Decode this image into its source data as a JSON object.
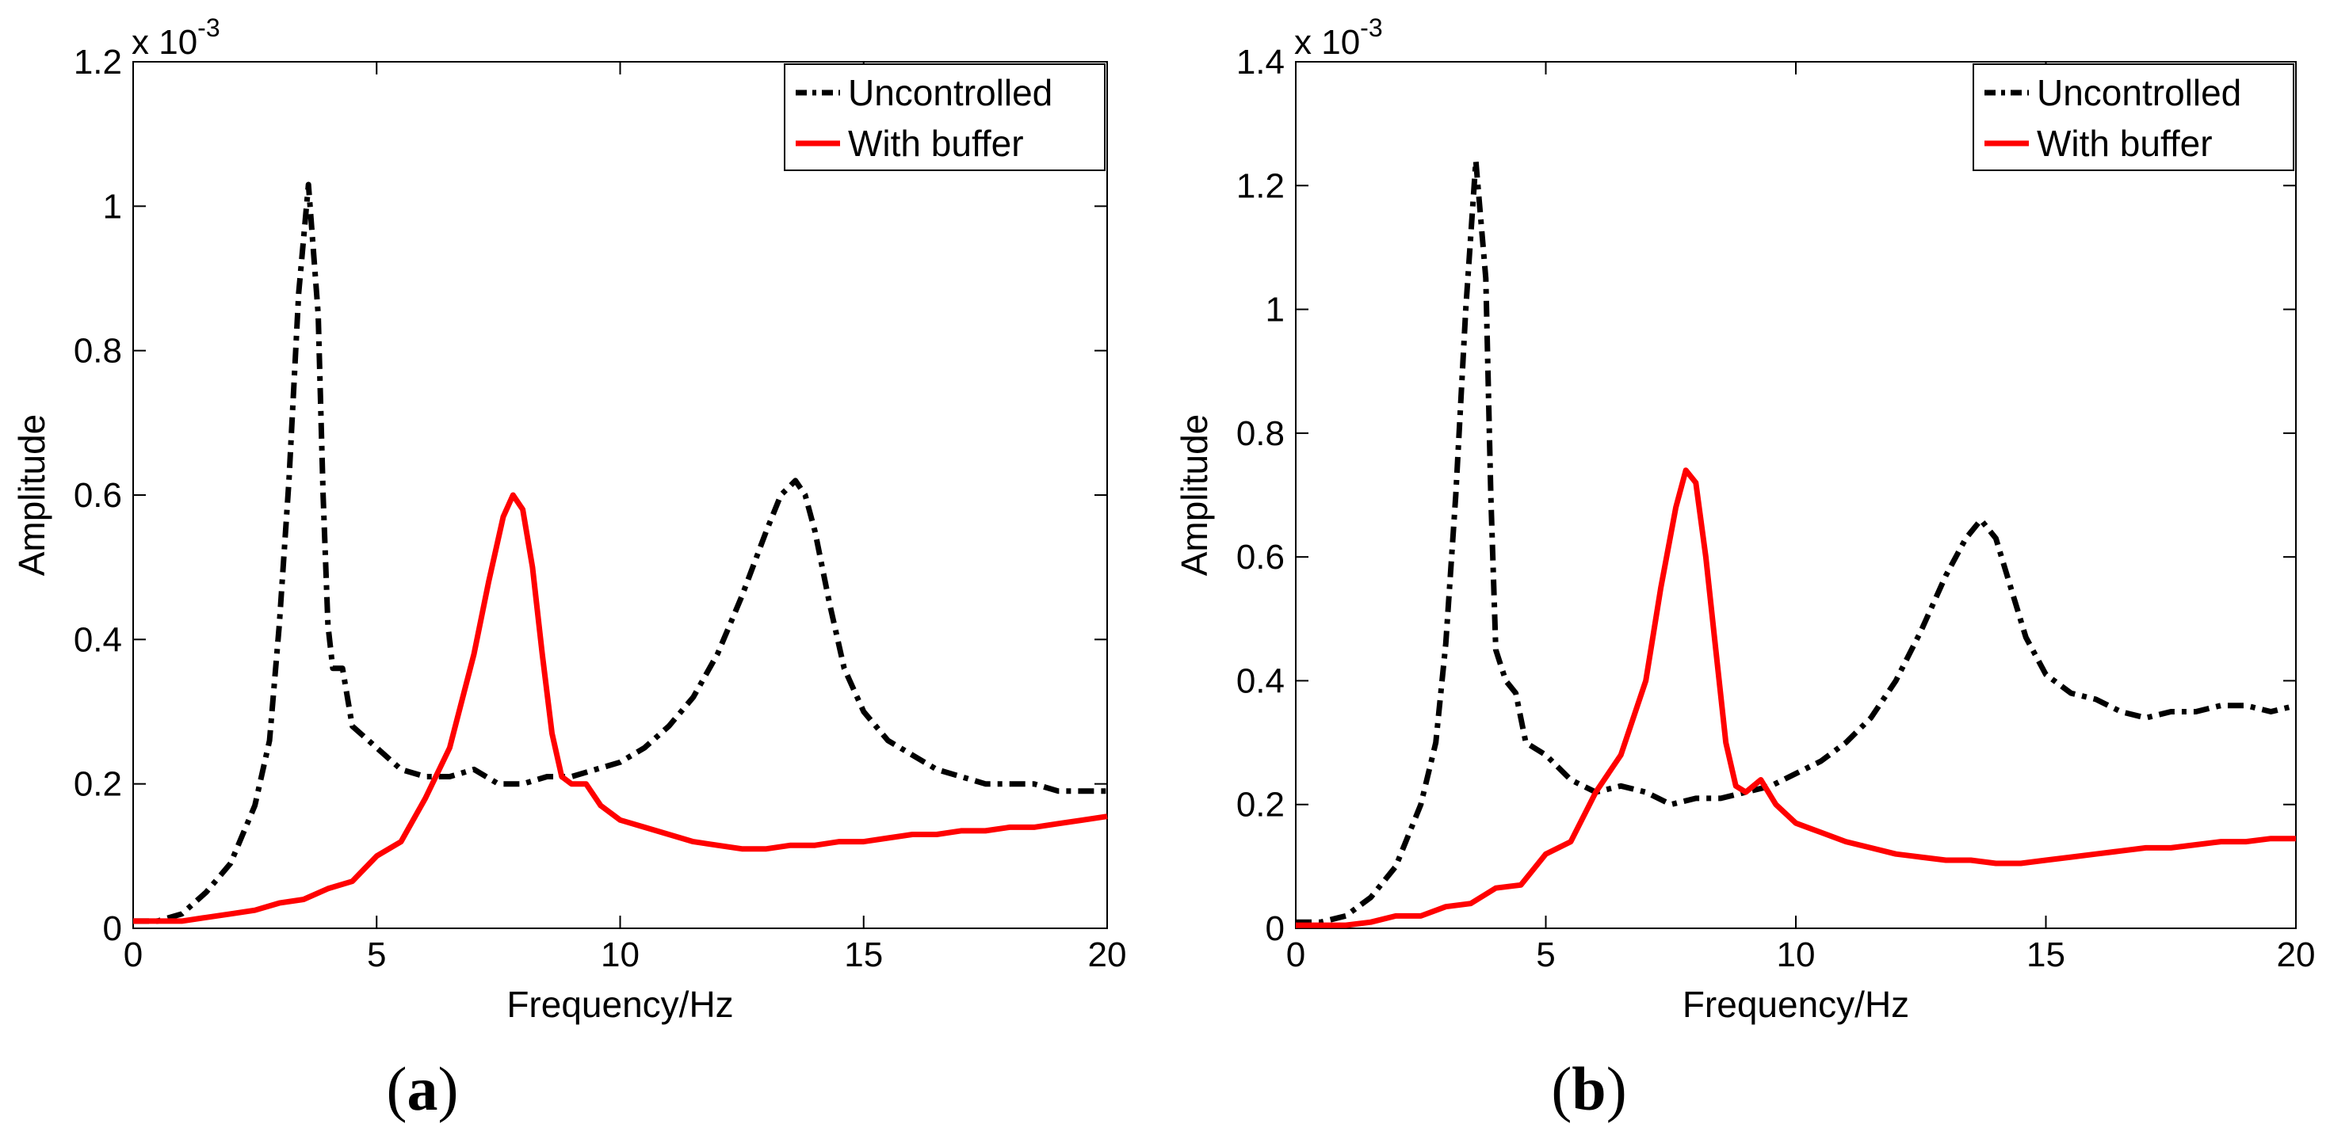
{
  "figure": {
    "panel_labels": [
      "a",
      "b"
    ]
  },
  "chart_data": [
    {
      "type": "line",
      "panel": "a",
      "xlabel": "Frequency/Hz",
      "ylabel": "Amplitude",
      "y_scale_label": "x 10",
      "y_scale_exponent": "-3",
      "xlim": [
        0,
        20
      ],
      "ylim": [
        0,
        1.2
      ],
      "xticks": [
        0,
        5,
        10,
        15,
        20
      ],
      "xtick_labels": [
        "0",
        "5",
        "10",
        "15",
        "20"
      ],
      "yticks": [
        0,
        0.2,
        0.4,
        0.6,
        0.8,
        1.0,
        1.2
      ],
      "ytick_labels": [
        "0",
        "0.2",
        "0.4",
        "0.6",
        "0.8",
        "1",
        "1.2"
      ],
      "legend_position": "top-right",
      "series": [
        {
          "name": "Uncontrolled",
          "color": "#000000",
          "style": "dashdot",
          "x": [
            0,
            0.5,
            1.0,
            1.5,
            2.0,
            2.5,
            2.8,
            3.0,
            3.2,
            3.4,
            3.6,
            3.8,
            3.9,
            4.0,
            4.1,
            4.3,
            4.5,
            5.0,
            5.5,
            6.0,
            6.5,
            7.0,
            7.5,
            8.0,
            8.5,
            9.0,
            9.5,
            10.0,
            10.5,
            11.0,
            11.5,
            12.0,
            12.5,
            13.0,
            13.3,
            13.6,
            13.8,
            14.0,
            14.3,
            14.6,
            15.0,
            15.5,
            16.0,
            16.5,
            17.0,
            17.5,
            18.0,
            18.5,
            19.0,
            19.5,
            20.0
          ],
          "values": [
            0.01,
            0.01,
            0.02,
            0.05,
            0.09,
            0.17,
            0.26,
            0.42,
            0.62,
            0.88,
            1.03,
            0.85,
            0.6,
            0.42,
            0.36,
            0.36,
            0.28,
            0.25,
            0.22,
            0.21,
            0.21,
            0.22,
            0.2,
            0.2,
            0.21,
            0.21,
            0.22,
            0.23,
            0.25,
            0.28,
            0.32,
            0.38,
            0.46,
            0.55,
            0.6,
            0.62,
            0.6,
            0.55,
            0.45,
            0.36,
            0.3,
            0.26,
            0.24,
            0.22,
            0.21,
            0.2,
            0.2,
            0.2,
            0.19,
            0.19,
            0.19
          ]
        },
        {
          "name": "With buffer",
          "color": "#ff0000",
          "style": "solid",
          "x": [
            0,
            0.5,
            1.0,
            1.5,
            2.0,
            2.5,
            3.0,
            3.5,
            4.0,
            4.5,
            5.0,
            5.5,
            6.0,
            6.5,
            7.0,
            7.3,
            7.6,
            7.8,
            8.0,
            8.2,
            8.4,
            8.6,
            8.8,
            9.0,
            9.3,
            9.6,
            10.0,
            10.5,
            11.0,
            11.5,
            12.0,
            12.5,
            13.0,
            13.5,
            14.0,
            14.5,
            15.0,
            15.5,
            16.0,
            16.5,
            17.0,
            17.5,
            18.0,
            18.5,
            19.0,
            19.5,
            20.0
          ],
          "values": [
            0.01,
            0.01,
            0.01,
            0.015,
            0.02,
            0.025,
            0.035,
            0.04,
            0.055,
            0.065,
            0.1,
            0.12,
            0.18,
            0.25,
            0.38,
            0.48,
            0.57,
            0.6,
            0.58,
            0.5,
            0.38,
            0.27,
            0.21,
            0.2,
            0.2,
            0.17,
            0.15,
            0.14,
            0.13,
            0.12,
            0.115,
            0.11,
            0.11,
            0.115,
            0.115,
            0.12,
            0.12,
            0.125,
            0.13,
            0.13,
            0.135,
            0.135,
            0.14,
            0.14,
            0.145,
            0.15,
            0.155
          ]
        }
      ]
    },
    {
      "type": "line",
      "panel": "b",
      "xlabel": "Frequency/Hz",
      "ylabel": "Amplitude",
      "y_scale_label": "x 10",
      "y_scale_exponent": "-3",
      "xlim": [
        0,
        20
      ],
      "ylim": [
        0,
        1.4
      ],
      "xticks": [
        0,
        5,
        10,
        15,
        20
      ],
      "xtick_labels": [
        "0",
        "5",
        "10",
        "15",
        "20"
      ],
      "yticks": [
        0,
        0.2,
        0.4,
        0.6,
        0.8,
        1.0,
        1.2,
        1.4
      ],
      "ytick_labels": [
        "0",
        "0.2",
        "0.4",
        "0.6",
        "0.8",
        "1",
        "1.2",
        "1.4"
      ],
      "legend_position": "top-right",
      "series": [
        {
          "name": "Uncontrolled",
          "color": "#000000",
          "style": "dashdot",
          "x": [
            0,
            0.5,
            1.0,
            1.5,
            2.0,
            2.5,
            2.8,
            3.0,
            3.2,
            3.4,
            3.6,
            3.8,
            3.9,
            4.0,
            4.2,
            4.4,
            4.6,
            5.0,
            5.5,
            6.0,
            6.5,
            7.0,
            7.5,
            8.0,
            8.5,
            9.0,
            9.5,
            10.0,
            10.5,
            11.0,
            11.5,
            12.0,
            12.5,
            13.0,
            13.4,
            13.7,
            14.0,
            14.3,
            14.6,
            15.0,
            15.5,
            16.0,
            16.5,
            17.0,
            17.5,
            18.0,
            18.5,
            19.0,
            19.5,
            20.0
          ],
          "values": [
            0.01,
            0.01,
            0.02,
            0.05,
            0.1,
            0.2,
            0.3,
            0.46,
            0.7,
            1.0,
            1.24,
            1.05,
            0.7,
            0.45,
            0.4,
            0.38,
            0.3,
            0.28,
            0.24,
            0.22,
            0.23,
            0.22,
            0.2,
            0.21,
            0.21,
            0.22,
            0.23,
            0.25,
            0.27,
            0.3,
            0.34,
            0.4,
            0.48,
            0.57,
            0.63,
            0.66,
            0.63,
            0.55,
            0.47,
            0.41,
            0.38,
            0.37,
            0.35,
            0.34,
            0.35,
            0.35,
            0.36,
            0.36,
            0.35,
            0.36
          ]
        },
        {
          "name": "With buffer",
          "color": "#ff0000",
          "style": "solid",
          "x": [
            0,
            0.5,
            1.0,
            1.5,
            2.0,
            2.5,
            3.0,
            3.5,
            4.0,
            4.5,
            5.0,
            5.5,
            6.0,
            6.5,
            7.0,
            7.3,
            7.6,
            7.8,
            8.0,
            8.2,
            8.4,
            8.6,
            8.8,
            9.0,
            9.3,
            9.6,
            10.0,
            10.5,
            11.0,
            11.5,
            12.0,
            12.5,
            13.0,
            13.5,
            14.0,
            14.5,
            15.0,
            15.5,
            16.0,
            16.5,
            17.0,
            17.5,
            18.0,
            18.5,
            19.0,
            19.5,
            20.0
          ],
          "values": [
            0.005,
            0.005,
            0.005,
            0.01,
            0.02,
            0.02,
            0.035,
            0.04,
            0.065,
            0.07,
            0.12,
            0.14,
            0.22,
            0.28,
            0.4,
            0.55,
            0.68,
            0.74,
            0.72,
            0.6,
            0.45,
            0.3,
            0.23,
            0.22,
            0.24,
            0.2,
            0.17,
            0.155,
            0.14,
            0.13,
            0.12,
            0.115,
            0.11,
            0.11,
            0.105,
            0.105,
            0.11,
            0.115,
            0.12,
            0.125,
            0.13,
            0.13,
            0.135,
            0.14,
            0.14,
            0.145,
            0.145
          ]
        }
      ]
    }
  ]
}
